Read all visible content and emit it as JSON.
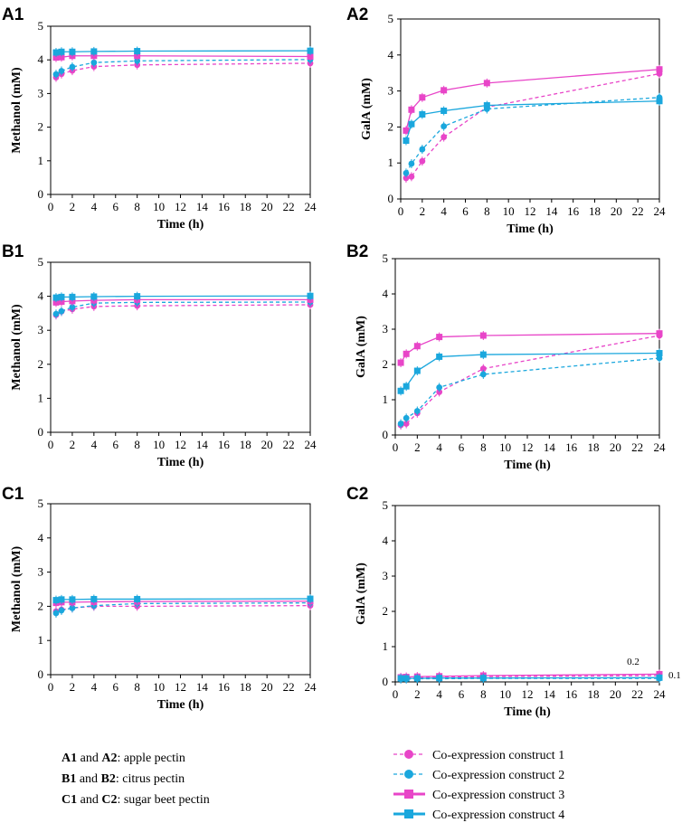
{
  "colors": {
    "magenta": "#e845c8",
    "cyan": "#1aa7dd",
    "axis": "#000000"
  },
  "chart_data": [
    {
      "panel": "A1",
      "type": "line",
      "xlabel": "Time (h)",
      "ylabel": "Methanol (mM)",
      "x_ticks": [
        "0",
        "2",
        "4",
        "6",
        "8",
        "10",
        "12",
        "14",
        "16",
        "18",
        "20",
        "22",
        "24"
      ],
      "y_ticks": [
        "0",
        "1",
        "2",
        "3",
        "4",
        "5"
      ],
      "xlim": [
        0,
        24
      ],
      "ylim": [
        0,
        5
      ],
      "x": [
        0.5,
        1,
        2,
        4,
        8,
        24
      ],
      "series": [
        {
          "name": "Co-expression construct 1",
          "values": [
            3.48,
            3.58,
            3.68,
            3.8,
            3.85,
            3.9
          ]
        },
        {
          "name": "Co-expression construct 2",
          "values": [
            3.57,
            3.67,
            3.79,
            3.92,
            3.97,
            4.01
          ]
        },
        {
          "name": "Co-expression construct 3",
          "values": [
            4.07,
            4.08,
            4.12,
            4.12,
            4.12,
            4.1
          ]
        },
        {
          "name": "Co-expression construct 4",
          "values": [
            4.22,
            4.24,
            4.24,
            4.25,
            4.26,
            4.27
          ]
        }
      ]
    },
    {
      "panel": "A2",
      "type": "line",
      "xlabel": "Time (h)",
      "ylabel": "GalA (mM)",
      "x_ticks": [
        "0",
        "2",
        "4",
        "6",
        "8",
        "10",
        "12",
        "14",
        "16",
        "18",
        "20",
        "22",
        "24"
      ],
      "y_ticks": [
        "0",
        "1",
        "2",
        "3",
        "4",
        "5"
      ],
      "xlim": [
        0,
        24
      ],
      "ylim": [
        0,
        5
      ],
      "x": [
        0.5,
        1,
        2,
        4,
        8,
        24
      ],
      "series": [
        {
          "name": "Co-expression construct 1",
          "values": [
            0.58,
            0.62,
            1.05,
            1.72,
            2.55,
            3.48
          ]
        },
        {
          "name": "Co-expression construct 2",
          "values": [
            0.72,
            0.98,
            1.38,
            2.02,
            2.5,
            2.82
          ]
        },
        {
          "name": "Co-expression construct 3",
          "values": [
            1.9,
            2.48,
            2.82,
            3.02,
            3.22,
            3.6
          ]
        },
        {
          "name": "Co-expression construct 4",
          "values": [
            1.62,
            2.08,
            2.35,
            2.45,
            2.6,
            2.72
          ]
        }
      ]
    },
    {
      "panel": "B1",
      "type": "line",
      "xlabel": "Time (h)",
      "ylabel": "Methanol (mM)",
      "x_ticks": [
        "0",
        "2",
        "4",
        "6",
        "8",
        "10",
        "12",
        "14",
        "16",
        "18",
        "20",
        "22",
        "24"
      ],
      "y_ticks": [
        "0",
        "1",
        "2",
        "3",
        "4",
        "5"
      ],
      "xlim": [
        0,
        24
      ],
      "ylim": [
        0,
        5
      ],
      "x": [
        0.5,
        1,
        2,
        4,
        8,
        24
      ],
      "series": [
        {
          "name": "Co-expression construct 1",
          "values": [
            3.45,
            3.55,
            3.62,
            3.7,
            3.72,
            3.75
          ]
        },
        {
          "name": "Co-expression construct 2",
          "values": [
            3.48,
            3.56,
            3.68,
            3.8,
            3.82,
            3.83
          ]
        },
        {
          "name": "Co-expression construct 3",
          "values": [
            3.82,
            3.84,
            3.86,
            3.88,
            3.9,
            3.9
          ]
        },
        {
          "name": "Co-expression construct 4",
          "values": [
            3.96,
            3.98,
            3.98,
            3.99,
            4.0,
            4.01
          ]
        }
      ]
    },
    {
      "panel": "B2",
      "type": "line",
      "xlabel": "Time (h)",
      "ylabel": "GalA (mM)",
      "x_ticks": [
        "0",
        "2",
        "4",
        "6",
        "8",
        "10",
        "12",
        "14",
        "16",
        "18",
        "20",
        "22",
        "24"
      ],
      "y_ticks": [
        "0",
        "1",
        "2",
        "3",
        "4",
        "5"
      ],
      "xlim": [
        0,
        24
      ],
      "ylim": [
        0,
        5
      ],
      "x": [
        0.5,
        1,
        2,
        4,
        8,
        24
      ],
      "series": [
        {
          "name": "Co-expression construct 1",
          "values": [
            0.28,
            0.32,
            0.62,
            1.22,
            1.88,
            2.82
          ]
        },
        {
          "name": "Co-expression construct 2",
          "values": [
            0.32,
            0.48,
            0.68,
            1.35,
            1.72,
            2.18
          ]
        },
        {
          "name": "Co-expression construct 3",
          "values": [
            2.05,
            2.3,
            2.52,
            2.78,
            2.82,
            2.88
          ]
        },
        {
          "name": "Co-expression construct 4",
          "values": [
            1.25,
            1.38,
            1.82,
            2.22,
            2.28,
            2.32
          ]
        }
      ]
    },
    {
      "panel": "C1",
      "type": "line",
      "xlabel": "Time (h)",
      "ylabel": "Methanol (mM)",
      "x_ticks": [
        "0",
        "2",
        "4",
        "6",
        "8",
        "10",
        "12",
        "14",
        "16",
        "18",
        "20",
        "22",
        "24"
      ],
      "y_ticks": [
        "0",
        "1",
        "2",
        "3",
        "4",
        "5"
      ],
      "xlim": [
        0,
        24
      ],
      "ylim": [
        0,
        5
      ],
      "x": [
        0.5,
        1,
        2,
        4,
        8,
        24
      ],
      "series": [
        {
          "name": "Co-expression construct 1",
          "values": [
            1.85,
            1.9,
            1.95,
            2.0,
            2.0,
            2.02
          ]
        },
        {
          "name": "Co-expression construct 2",
          "values": [
            1.8,
            1.88,
            1.95,
            2.02,
            2.08,
            2.1
          ]
        },
        {
          "name": "Co-expression construct 3",
          "values": [
            2.1,
            2.12,
            2.12,
            2.13,
            2.14,
            2.15
          ]
        },
        {
          "name": "Co-expression construct 4",
          "values": [
            2.18,
            2.2,
            2.2,
            2.21,
            2.21,
            2.22
          ]
        }
      ]
    },
    {
      "panel": "C2",
      "type": "line",
      "xlabel": "Time (h)",
      "ylabel": "GalA (mM)",
      "x_ticks": [
        "0",
        "2",
        "4",
        "6",
        "8",
        "10",
        "12",
        "14",
        "16",
        "18",
        "20",
        "22",
        "24"
      ],
      "y_ticks": [
        "0",
        "1",
        "2",
        "3",
        "4",
        "5"
      ],
      "xlim": [
        0,
        24
      ],
      "ylim": [
        0,
        5
      ],
      "x": [
        0.5,
        1,
        2,
        4,
        8,
        24
      ],
      "annotations": [
        "0.2",
        "0.1"
      ],
      "series": [
        {
          "name": "Co-expression construct 1",
          "values": [
            0.1,
            0.11,
            0.12,
            0.13,
            0.15,
            0.18
          ]
        },
        {
          "name": "Co-expression construct 2",
          "values": [
            0.08,
            0.08,
            0.09,
            0.09,
            0.1,
            0.1
          ]
        },
        {
          "name": "Co-expression construct 3",
          "values": [
            0.13,
            0.14,
            0.15,
            0.16,
            0.18,
            0.22
          ]
        },
        {
          "name": "Co-expression construct 4",
          "values": [
            0.1,
            0.1,
            0.1,
            0.11,
            0.11,
            0.12
          ]
        }
      ]
    }
  ],
  "legend": [
    {
      "label": "Co-expression construct 1",
      "color": "#e845c8",
      "marker": "circle",
      "dash": "dashed"
    },
    {
      "label": "Co-expression construct 2",
      "color": "#1aa7dd",
      "marker": "circle",
      "dash": "dashed"
    },
    {
      "label": "Co-expression construct 3",
      "color": "#e845c8",
      "marker": "square",
      "dash": "solid"
    },
    {
      "label": "Co-expression construct 4",
      "color": "#1aa7dd",
      "marker": "square",
      "dash": "solid"
    }
  ],
  "key": [
    {
      "panels_a": "A1",
      "and": " and ",
      "panels_b": "A2",
      "desc": ": apple pectin"
    },
    {
      "panels_a": "B1",
      "and": " and ",
      "panels_b": "B2",
      "desc": ": citrus pectin"
    },
    {
      "panels_a": "C1",
      "and": " and ",
      "panels_b": "C2",
      "desc": ": sugar beet pectin"
    }
  ]
}
